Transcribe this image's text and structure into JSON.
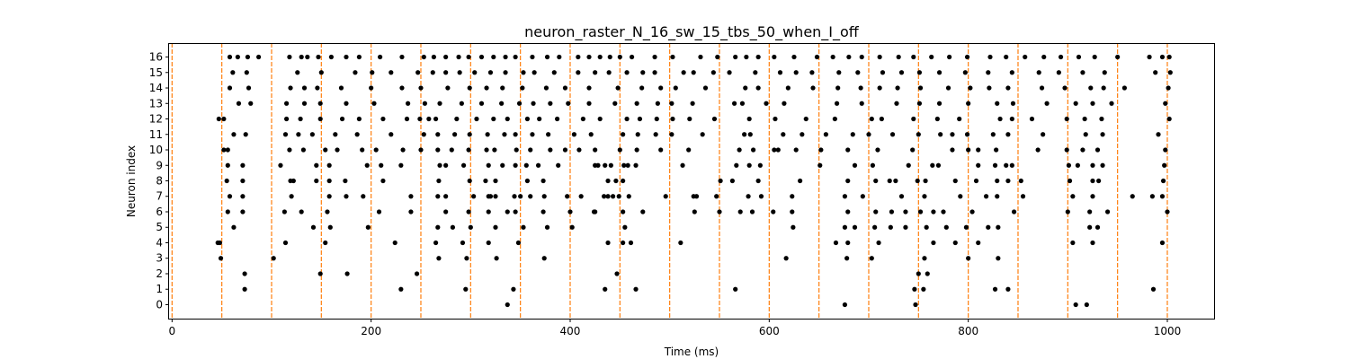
{
  "chart_data": {
    "type": "scatter",
    "title": "neuron_raster_N_16_sw_15_tbs_50_when_I_off",
    "xlabel": "Time (ms)",
    "ylabel": "Neuron index",
    "xlim": [
      -3,
      1047
    ],
    "ylim": [
      -0.9,
      16.9
    ],
    "xticks": [
      0,
      200,
      400,
      600,
      800,
      1000
    ],
    "yticks": [
      0,
      1,
      2,
      3,
      4,
      5,
      6,
      7,
      8,
      9,
      10,
      11,
      12,
      13,
      14,
      15,
      16
    ],
    "grid": false,
    "marker_color": "#000000",
    "vline_color": "#ff7f0e",
    "vlines": [
      0,
      50,
      100,
      150,
      200,
      250,
      300,
      350,
      400,
      450,
      500,
      550,
      600,
      650,
      700,
      750,
      800,
      850,
      900,
      950,
      1000
    ],
    "spikes": [
      [
        [
          337,
          676,
          747,
          908,
          919
        ]
      ],
      [
        [
          73,
          230,
          295,
          343,
          435,
          466,
          566,
          746,
          755,
          827,
          840,
          986
        ]
      ],
      [
        [
          73,
          149,
          176,
          246,
          447,
          750,
          759
        ]
      ],
      [
        [
          49,
          102,
          268,
          296,
          326,
          374,
          617,
          678,
          703,
          756,
          800,
          830
        ]
      ],
      [
        [
          46,
          48,
          114,
          154,
          224,
          265,
          292,
          318,
          348,
          438,
          453,
          461,
          511,
          667,
          679,
          710,
          765,
          787,
          810,
          905,
          925,
          995
        ]
      ],
      [
        [
          62,
          142,
          159,
          197,
          267,
          282,
          300,
          325,
          353,
          377,
          402,
          455,
          624,
          676,
          686,
          706,
          722,
          737,
          758,
          778,
          798,
          820,
          830,
          922,
          930
        ]
      ],
      [
        [
          56,
          71,
          113,
          130,
          156,
          208,
          240,
          275,
          298,
          318,
          337,
          345,
          373,
          400,
          424,
          425,
          453,
          473,
          525,
          550,
          571,
          583,
          604,
          623,
          679,
          707,
          723,
          737,
          752,
          765,
          775,
          804,
          846,
          900,
          922,
          940,
          1000
        ]
      ],
      [
        [
          58,
          71,
          120,
          158,
          175,
          192,
          240,
          267,
          275,
          303,
          318,
          320,
          325,
          344,
          350,
          360,
          374,
          397,
          411,
          434,
          438,
          443,
          449,
          459,
          496,
          524,
          527,
          547,
          579,
          592,
          623,
          676,
          694,
          733,
          756,
          792,
          818,
          829,
          855,
          905,
          925,
          965,
          985,
          995
        ]
      ],
      [
        [
          55,
          71,
          119,
          122,
          145,
          158,
          174,
          212,
          268,
          299,
          315,
          325,
          357,
          373,
          438,
          446,
          453,
          551,
          563,
          589,
          631,
          679,
          707,
          721,
          727,
          749,
          757,
          787,
          808,
          829,
          840,
          853,
          902,
          925,
          931,
          996
        ]
      ],
      [
        [
          56,
          71,
          109,
          145,
          158,
          196,
          210,
          230,
          269,
          275,
          293,
          318,
          332,
          345,
          356,
          368,
          388,
          425,
          428,
          435,
          441,
          454,
          458,
          466,
          513,
          567,
          580,
          591,
          651,
          686,
          704,
          740,
          764,
          770,
          810,
          827,
          838,
          844,
          901,
          910,
          925,
          935,
          997
        ]
      ],
      [
        [
          52,
          56,
          118,
          132,
          154,
          166,
          191,
          205,
          232,
          250,
          267,
          281,
          298,
          316,
          324,
          346,
          360,
          380,
          395,
          409,
          425,
          450,
          467,
          491,
          519,
          570,
          584,
          605,
          609,
          627,
          652,
          679,
          709,
          744,
          784,
          800,
          810,
          828,
          870,
          899,
          915,
          930,
          998
        ]
      ],
      [
        [
          62,
          74,
          114,
          127,
          141,
          164,
          186,
          220,
          253,
          267,
          284,
          299,
          317,
          334,
          345,
          362,
          378,
          404,
          421,
          453,
          468,
          486,
          502,
          533,
          575,
          581,
          614,
          633,
          657,
          684,
          700,
          724,
          750,
          772,
          784,
          799,
          825,
          840,
          875,
          918,
          935,
          991
        ]
      ],
      [
        [
          47,
          52,
          115,
          129,
          149,
          171,
          188,
          212,
          236,
          249,
          258,
          265,
          286,
          306,
          323,
          337,
          357,
          369,
          387,
          413,
          430,
          457,
          470,
          487,
          503,
          520,
          545,
          580,
          606,
          637,
          666,
          703,
          713,
          745,
          769,
          791,
          832,
          844,
          864,
          899,
          917,
          934,
          1002
        ]
      ],
      [
        [
          67,
          79,
          115,
          133,
          149,
          175,
          203,
          237,
          254,
          269,
          291,
          311,
          331,
          349,
          363,
          380,
          398,
          419,
          445,
          467,
          488,
          502,
          523,
          565,
          573,
          597,
          615,
          668,
          693,
          728,
          751,
          771,
          800,
          829,
          845,
          879,
          908,
          925,
          944,
          998
        ]
      ],
      [
        [
          58,
          77,
          119,
          133,
          146,
          170,
          200,
          231,
          250,
          277,
          299,
          316,
          332,
          352,
          376,
          395,
          419,
          448,
          472,
          491,
          506,
          536,
          576,
          589,
          619,
          644,
          669,
          692,
          711,
          729,
          752,
          780,
          802,
          821,
          840,
          874,
          897,
          923,
          936,
          957,
          1001
        ]
      ],
      [
        [
          61,
          75,
          126,
          150,
          184,
          201,
          220,
          247,
          262,
          275,
          289,
          304,
          320,
          335,
          353,
          364,
          384,
          408,
          425,
          439,
          457,
          473,
          485,
          514,
          524,
          544,
          560,
          586,
          611,
          627,
          643,
          670,
          689,
          714,
          733,
          751,
          771,
          797,
          820,
          844,
          871,
          891,
          915,
          937,
          988,
          1003
        ]
      ],
      [
        [
          58,
          66,
          76,
          87,
          118,
          130,
          136,
          147,
          160,
          175,
          188,
          209,
          231,
          253,
          263,
          275,
          288,
          298,
          311,
          323,
          335,
          345,
          362,
          377,
          389,
          408,
          419,
          430,
          440,
          450,
          462,
          485,
          503,
          531,
          548,
          566,
          577,
          589,
          605,
          625,
          648,
          664,
          680,
          693,
          711,
          730,
          745,
          763,
          781,
          799,
          822,
          838,
          857,
          876,
          893,
          911,
          927,
          950,
          982,
          995,
          1002
        ]
      ]
    ]
  }
}
